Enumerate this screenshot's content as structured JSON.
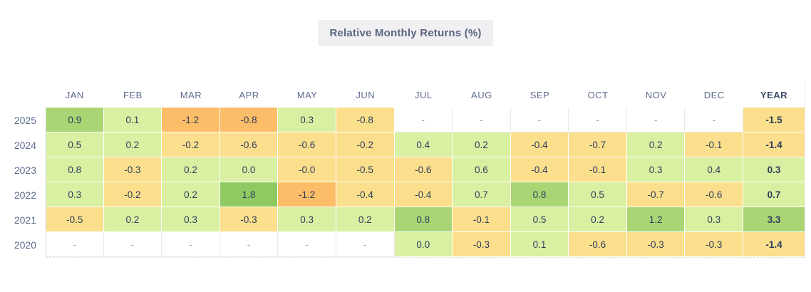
{
  "title": "Relative Monthly Returns (%)",
  "theme": {
    "titleBg": "#f0f0f3",
    "titleFg": "#5a6480",
    "headerFg": "#5d6b8e",
    "yearHeaderFg": "#3c4a68",
    "rowLabelFg": "#5d6b8e",
    "valueFg": "#2e3c5c",
    "dashFg": "#99a1b3",
    "gridLeftBorder": "#cfd2d8",
    "dashedBorder": "#dfe1e5",
    "innerBorder": "#ffffff",
    "emptyBorder": "#e8e9ed"
  },
  "colors": {
    "g1": "#d9f0a2",
    "g2": "#a9d575",
    "g3": "#8fc961",
    "y": "#fbdf8c",
    "o": "#fbbd68",
    "e": "#ffffff"
  },
  "table": {
    "columns": [
      "JAN",
      "FEB",
      "MAR",
      "APR",
      "MAY",
      "JUN",
      "JUL",
      "AUG",
      "SEP",
      "OCT",
      "NOV",
      "DEC",
      "YEAR"
    ],
    "rows": [
      {
        "year": "2025",
        "cells": [
          {
            "v": "0.9",
            "c": "g2"
          },
          {
            "v": "0.1",
            "c": "g1"
          },
          {
            "v": "-1.2",
            "c": "o"
          },
          {
            "v": "-0.8",
            "c": "o"
          },
          {
            "v": "0.3",
            "c": "g1"
          },
          {
            "v": "-0.8",
            "c": "y"
          },
          {
            "v": "-",
            "c": "e"
          },
          {
            "v": "-",
            "c": "e"
          },
          {
            "v": "-",
            "c": "e"
          },
          {
            "v": "-",
            "c": "e"
          },
          {
            "v": "-",
            "c": "e"
          },
          {
            "v": "-",
            "c": "e"
          },
          {
            "v": "-1.5",
            "c": "y"
          }
        ]
      },
      {
        "year": "2024",
        "cells": [
          {
            "v": "0.5",
            "c": "g1"
          },
          {
            "v": "0.2",
            "c": "g1"
          },
          {
            "v": "-0.2",
            "c": "y"
          },
          {
            "v": "-0.6",
            "c": "y"
          },
          {
            "v": "-0.6",
            "c": "y"
          },
          {
            "v": "-0.2",
            "c": "y"
          },
          {
            "v": "0.4",
            "c": "g1"
          },
          {
            "v": "0.2",
            "c": "g1"
          },
          {
            "v": "-0.4",
            "c": "y"
          },
          {
            "v": "-0.7",
            "c": "y"
          },
          {
            "v": "0.2",
            "c": "g1"
          },
          {
            "v": "-0.1",
            "c": "y"
          },
          {
            "v": "-1.4",
            "c": "y"
          }
        ]
      },
      {
        "year": "2023",
        "cells": [
          {
            "v": "0.8",
            "c": "g1"
          },
          {
            "v": "-0.3",
            "c": "y"
          },
          {
            "v": "0.2",
            "c": "g1"
          },
          {
            "v": "0.0",
            "c": "g1"
          },
          {
            "v": "-0.0",
            "c": "y"
          },
          {
            "v": "-0.5",
            "c": "y"
          },
          {
            "v": "-0.6",
            "c": "y"
          },
          {
            "v": "0.6",
            "c": "g1"
          },
          {
            "v": "-0.4",
            "c": "y"
          },
          {
            "v": "-0.1",
            "c": "y"
          },
          {
            "v": "0.3",
            "c": "g1"
          },
          {
            "v": "0.4",
            "c": "g1"
          },
          {
            "v": "0.3",
            "c": "g1"
          }
        ]
      },
      {
        "year": "2022",
        "cells": [
          {
            "v": "0.3",
            "c": "g1"
          },
          {
            "v": "-0.2",
            "c": "y"
          },
          {
            "v": "0.2",
            "c": "g1"
          },
          {
            "v": "1.8",
            "c": "g3"
          },
          {
            "v": "-1.2",
            "c": "o"
          },
          {
            "v": "-0.4",
            "c": "y"
          },
          {
            "v": "-0.4",
            "c": "y"
          },
          {
            "v": "0.7",
            "c": "g1"
          },
          {
            "v": "0.8",
            "c": "g2"
          },
          {
            "v": "0.5",
            "c": "g1"
          },
          {
            "v": "-0.7",
            "c": "y"
          },
          {
            "v": "-0.6",
            "c": "y"
          },
          {
            "v": "0.7",
            "c": "g1"
          }
        ]
      },
      {
        "year": "2021",
        "cells": [
          {
            "v": "-0.5",
            "c": "y"
          },
          {
            "v": "0.2",
            "c": "g1"
          },
          {
            "v": "0.3",
            "c": "g1"
          },
          {
            "v": "-0.3",
            "c": "y"
          },
          {
            "v": "0.3",
            "c": "g1"
          },
          {
            "v": "0.2",
            "c": "g1"
          },
          {
            "v": "0.8",
            "c": "g2"
          },
          {
            "v": "-0.1",
            "c": "y"
          },
          {
            "v": "0.5",
            "c": "g1"
          },
          {
            "v": "0.2",
            "c": "g1"
          },
          {
            "v": "1.2",
            "c": "g2"
          },
          {
            "v": "0.3",
            "c": "g1"
          },
          {
            "v": "3.3",
            "c": "g2"
          }
        ]
      },
      {
        "year": "2020",
        "cells": [
          {
            "v": "-",
            "c": "e"
          },
          {
            "v": "-",
            "c": "e"
          },
          {
            "v": "-",
            "c": "e"
          },
          {
            "v": "-",
            "c": "e"
          },
          {
            "v": "-",
            "c": "e"
          },
          {
            "v": "-",
            "c": "e"
          },
          {
            "v": "0.0",
            "c": "g1"
          },
          {
            "v": "-0.3",
            "c": "y"
          },
          {
            "v": "0.1",
            "c": "g1"
          },
          {
            "v": "-0.6",
            "c": "y"
          },
          {
            "v": "-0.3",
            "c": "y"
          },
          {
            "v": "-0.3",
            "c": "y"
          },
          {
            "v": "-1.4",
            "c": "y"
          }
        ]
      }
    ]
  },
  "chart_data": {
    "type": "heatmap",
    "title": "Relative Monthly Returns (%)",
    "columns": [
      "JAN",
      "FEB",
      "MAR",
      "APR",
      "MAY",
      "JUN",
      "JUL",
      "AUG",
      "SEP",
      "OCT",
      "NOV",
      "DEC",
      "YEAR"
    ],
    "rows": [
      "2025",
      "2024",
      "2023",
      "2022",
      "2021",
      "2020"
    ],
    "values": [
      [
        0.9,
        0.1,
        -1.2,
        -0.8,
        0.3,
        -0.8,
        null,
        null,
        null,
        null,
        null,
        null,
        -1.5
      ],
      [
        0.5,
        0.2,
        -0.2,
        -0.6,
        -0.6,
        -0.2,
        0.4,
        0.2,
        -0.4,
        -0.7,
        0.2,
        -0.1,
        -1.4
      ],
      [
        0.8,
        -0.3,
        0.2,
        0.0,
        -0.0,
        -0.5,
        -0.6,
        0.6,
        -0.4,
        -0.1,
        0.3,
        0.4,
        0.3
      ],
      [
        0.3,
        -0.2,
        0.2,
        1.8,
        -1.2,
        -0.4,
        -0.4,
        0.7,
        0.8,
        0.5,
        -0.7,
        -0.6,
        0.7
      ],
      [
        -0.5,
        0.2,
        0.3,
        -0.3,
        0.3,
        0.2,
        0.8,
        -0.1,
        0.5,
        0.2,
        1.2,
        0.3,
        3.3
      ],
      [
        null,
        null,
        null,
        null,
        null,
        null,
        0.0,
        -0.3,
        0.1,
        -0.6,
        -0.3,
        -0.3,
        -1.4
      ]
    ],
    "color_scale": "green = outperformance, yellow/orange = underperformance",
    "legend_position": "none",
    "grid": false
  }
}
